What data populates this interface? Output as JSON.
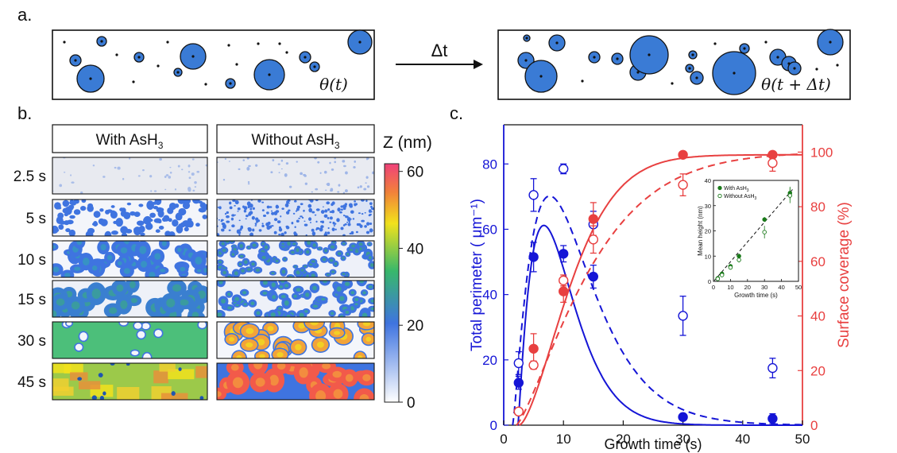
{
  "panel_a": {
    "label": "a.",
    "arrow_label": "Δt",
    "theta_before": "θ(t)",
    "theta_after": "θ(t + Δt)",
    "fill_color": "#3a7bd5"
  },
  "panel_b": {
    "label": "b.",
    "col_with": "With AsH",
    "col_without": "Without AsH",
    "sub3": "3",
    "row_times": [
      "2.5 s",
      "5 s",
      "10 s",
      "15 s",
      "30 s",
      "45 s"
    ],
    "colorbar_title": "Z (nm)",
    "colorbar_ticks": [
      "0",
      "20",
      "40",
      "60"
    ],
    "colorbar_colors": [
      "#ffffff",
      "#3f74e0",
      "#38b86b",
      "#f2e21c",
      "#f2823a",
      "#f0417a"
    ]
  },
  "chart_data": [
    {
      "type": "scatter",
      "label": "c.",
      "xlabel": "Growth time (s)",
      "ylabel_left": "Total perimeter ( μm⁻¹)",
      "ylabel_right": "Surface coverage (%)",
      "xlim": [
        0,
        50
      ],
      "ylim_left": [
        0,
        92
      ],
      "ylim_right": [
        0,
        110
      ],
      "xticks": [
        "0",
        "10",
        "20",
        "30",
        "40",
        "50"
      ],
      "yticks_left": [
        "0",
        "20",
        "40",
        "60",
        "80"
      ],
      "yticks_right": [
        "0",
        "20",
        "40",
        "60",
        "80",
        "100"
      ],
      "left_color": "#1515d6",
      "right_color": "#e84040",
      "series": [
        {
          "axis": "left",
          "filled": true,
          "x": [
            2.5,
            5,
            10,
            15,
            30,
            45
          ],
          "y": [
            13,
            51.5,
            52.5,
            45.5,
            2.5,
            2
          ],
          "err": [
            2,
            4.5,
            2.5,
            3.5,
            0.8,
            1.5
          ]
        },
        {
          "axis": "left",
          "filled": false,
          "x": [
            2.5,
            5,
            10,
            15,
            30,
            45
          ],
          "y": [
            19,
            70.5,
            78.5,
            61.5,
            33.5,
            17.5
          ],
          "err": [
            3.5,
            5,
            1.5,
            4,
            6,
            3
          ]
        },
        {
          "axis": "right",
          "filled": true,
          "x": [
            2.5,
            5,
            10,
            15,
            30,
            45
          ],
          "y": [
            5,
            28,
            49,
            75.5,
            99,
            99
          ],
          "err": [
            1,
            5.5,
            4,
            6,
            1,
            1
          ]
        },
        {
          "axis": "right",
          "filled": false,
          "x": [
            2.5,
            5,
            10,
            15,
            30,
            45
          ],
          "y": [
            5,
            22,
            53,
            68,
            88,
            96
          ],
          "err": [
            1,
            1.5,
            2,
            5,
            4,
            3
          ]
        }
      ]
    },
    {
      "type": "scatter",
      "xlabel": "Growth time (s)",
      "ylabel": "Mean height (nm)",
      "xlim": [
        0,
        50
      ],
      "ylim": [
        0,
        40
      ],
      "xticks": [
        "0",
        "10",
        "20",
        "30",
        "40",
        "50"
      ],
      "yticks": [
        "0",
        "10",
        "20",
        "30",
        "40"
      ],
      "color": "#1a7a1a",
      "series": [
        {
          "name": "With AsH",
          "sub": "3",
          "filled": true,
          "x": [
            2.5,
            5,
            10,
            15,
            30,
            45
          ],
          "y": [
            1.2,
            3,
            6,
            10,
            24.5,
            35
          ],
          "err": [
            0.5,
            0.6,
            0.8,
            1,
            1,
            2.5
          ]
        },
        {
          "name": "Without AsH",
          "sub": "3",
          "filled": false,
          "x": [
            2.5,
            5,
            10,
            15,
            30,
            45
          ],
          "y": [
            1,
            2.5,
            5.5,
            8.5,
            19.5,
            34
          ],
          "err": [
            0.5,
            0.6,
            0.8,
            1,
            2.5,
            3
          ]
        }
      ]
    }
  ]
}
